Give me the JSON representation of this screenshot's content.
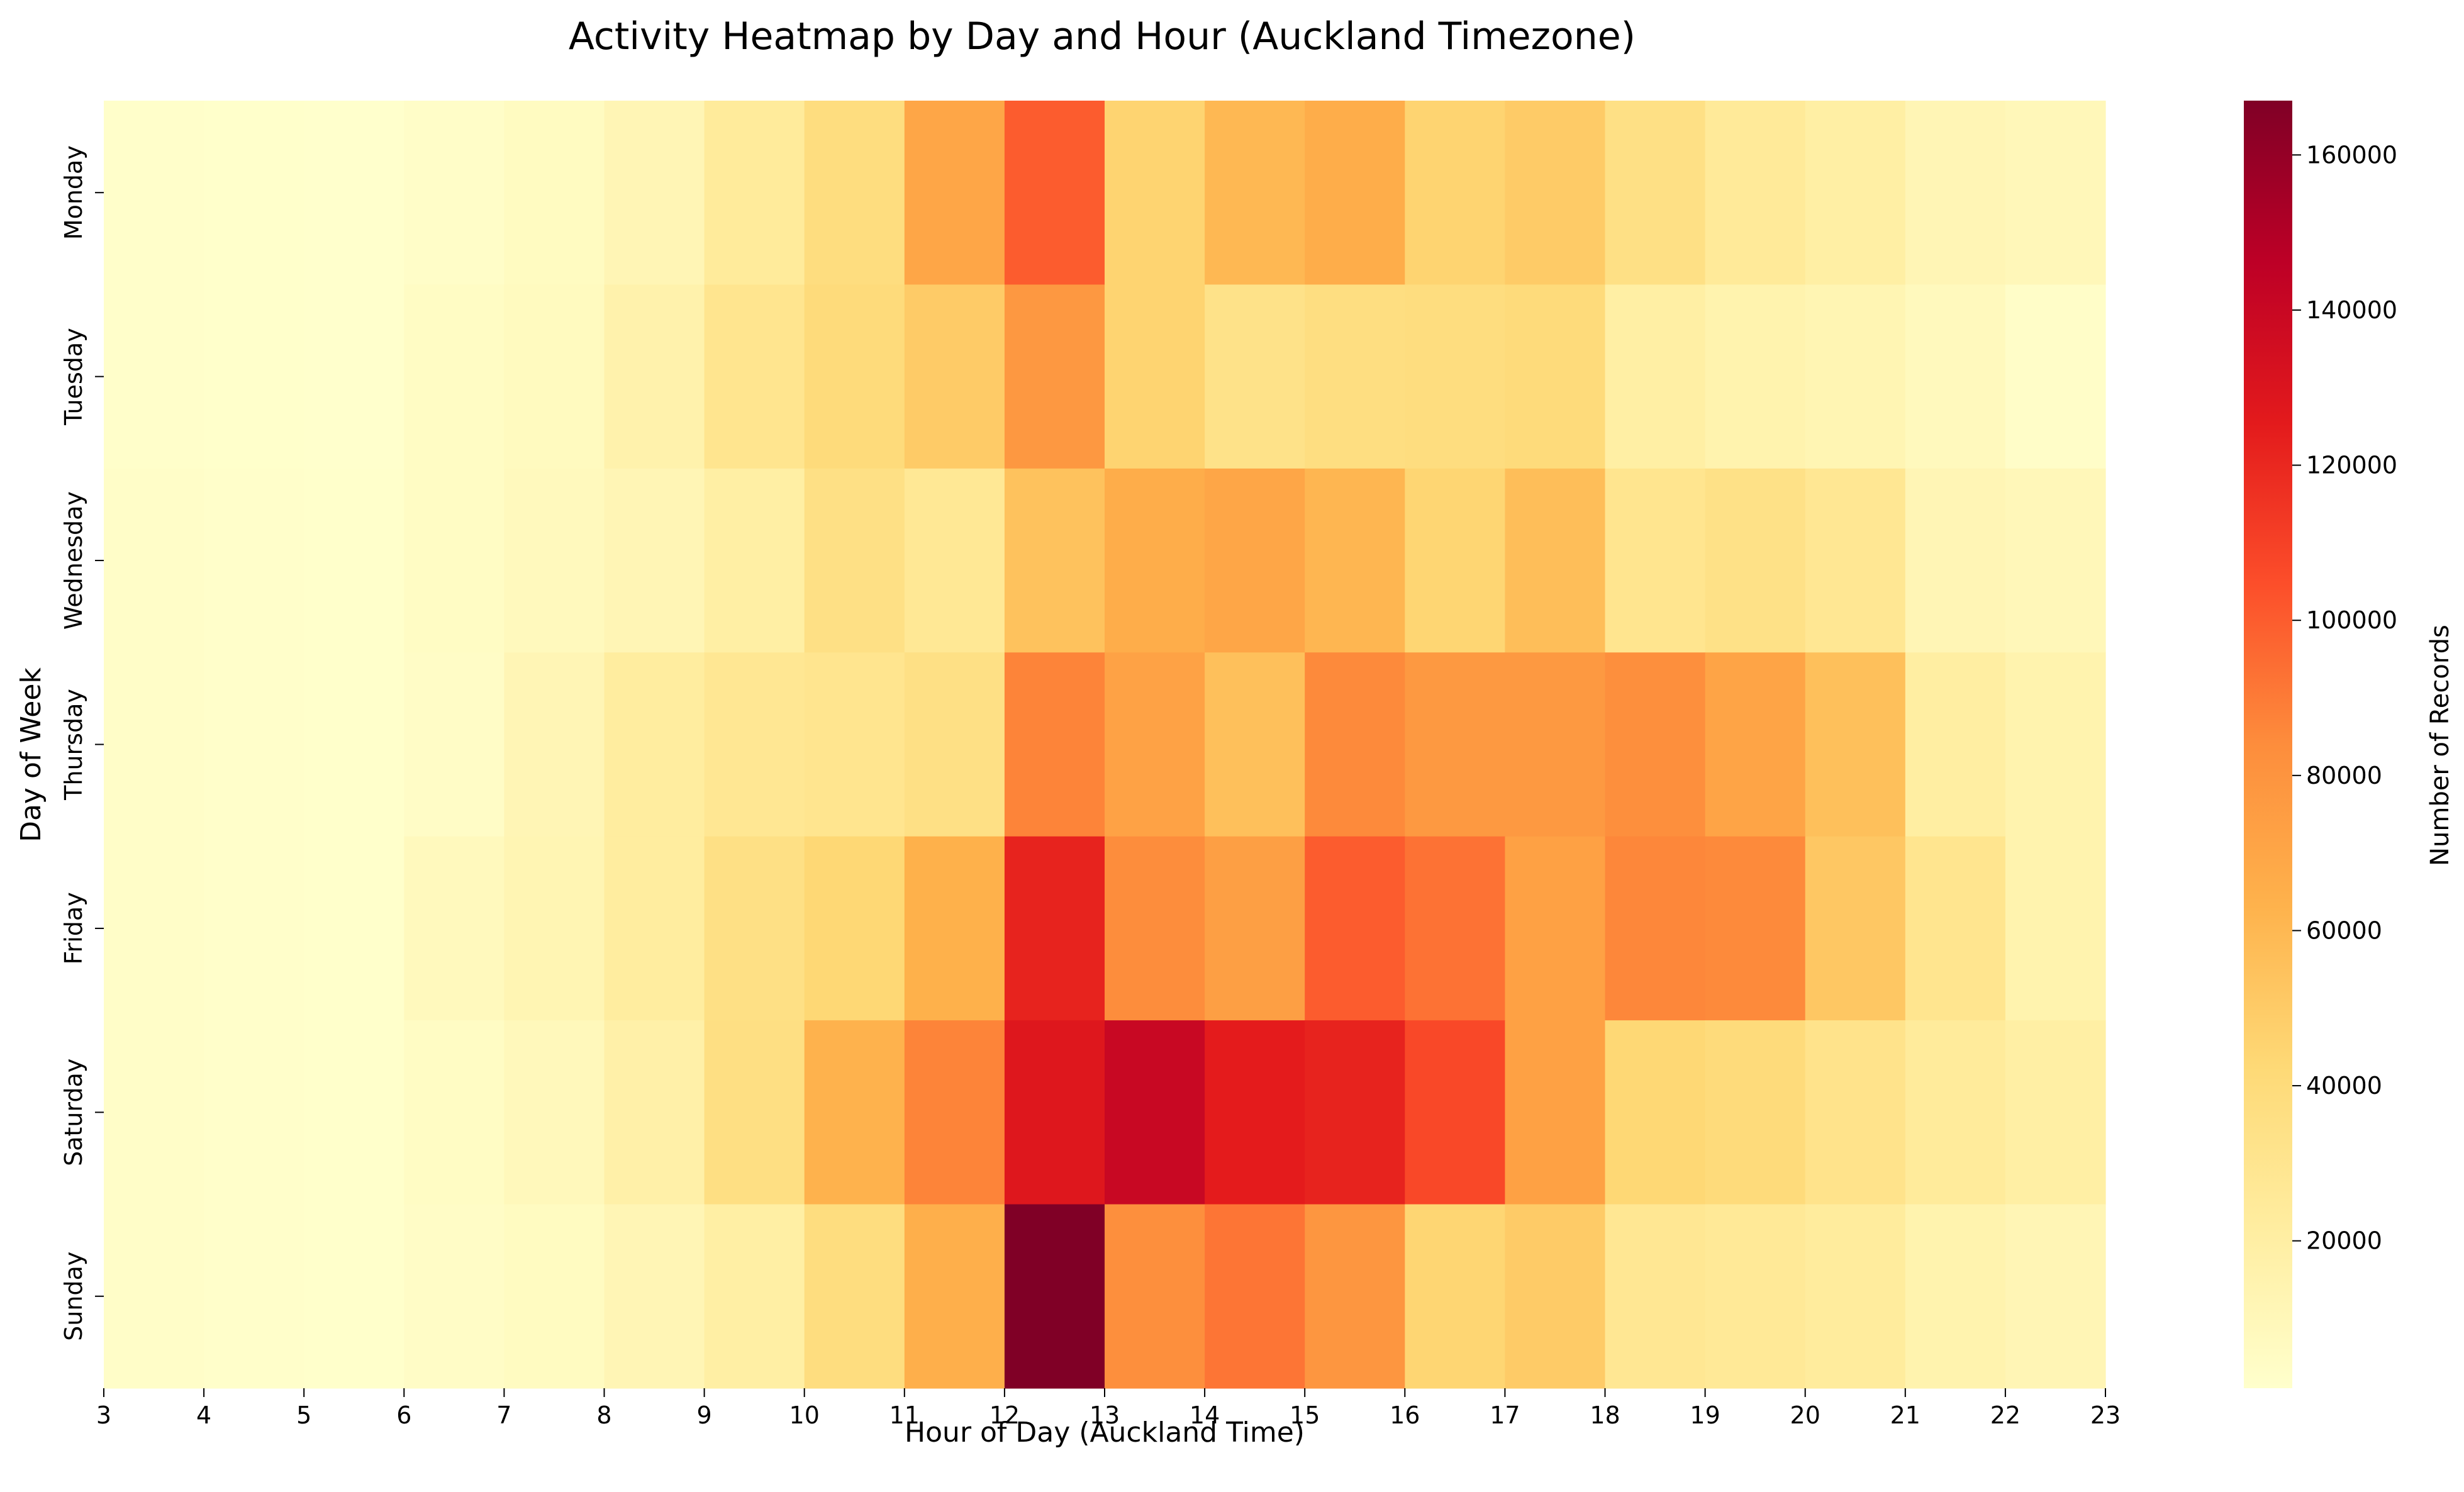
{
  "chart_data": {
    "type": "heatmap",
    "title": "Activity Heatmap by Day and Hour (Auckland Timezone)",
    "xlabel": "Hour of Day (Auckland Time)",
    "ylabel": "Day of Week",
    "x_ticks": [
      "3",
      "4",
      "5",
      "6",
      "7",
      "8",
      "9",
      "10",
      "11",
      "12",
      "13",
      "14",
      "15",
      "16",
      "17",
      "18",
      "19",
      "20",
      "21",
      "22",
      "23"
    ],
    "x": [
      3,
      4,
      5,
      6,
      7,
      8,
      9,
      10,
      11,
      12,
      13,
      14,
      15,
      16,
      17,
      18,
      19,
      20,
      21,
      22
    ],
    "y": [
      "Monday",
      "Tuesday",
      "Wednesday",
      "Thursday",
      "Friday",
      "Saturday",
      "Sunday"
    ],
    "values": [
      [
        2000,
        1500,
        1000,
        3000,
        6000,
        12000,
        24000,
        38000,
        70000,
        100000,
        45000,
        60000,
        66000,
        45000,
        50000,
        35000,
        25000,
        20000,
        12000,
        10000
      ],
      [
        2000,
        1500,
        1000,
        5000,
        7000,
        16000,
        30000,
        40000,
        50000,
        78000,
        45000,
        33000,
        37000,
        38000,
        40000,
        20000,
        15000,
        13000,
        8000,
        3000
      ],
      [
        3000,
        2000,
        1500,
        5000,
        8000,
        12000,
        20000,
        35000,
        27000,
        55000,
        66000,
        70000,
        61000,
        44000,
        57000,
        30000,
        34000,
        28000,
        12000,
        10000
      ],
      [
        3000,
        2000,
        1500,
        4000,
        12000,
        22000,
        28000,
        30000,
        35000,
        87000,
        72000,
        56000,
        85000,
        77000,
        77000,
        83000,
        71000,
        56000,
        21000,
        15000
      ],
      [
        3000,
        2000,
        1500,
        8000,
        13000,
        22000,
        35000,
        43000,
        64000,
        122000,
        84000,
        74000,
        100000,
        93000,
        73000,
        86000,
        85000,
        52000,
        30000,
        15000
      ],
      [
        3000,
        2000,
        1500,
        5000,
        9000,
        18000,
        36000,
        63000,
        87000,
        128000,
        140000,
        125000,
        122000,
        107000,
        73000,
        43000,
        40000,
        32000,
        24000,
        20000
      ],
      [
        3000,
        2000,
        1500,
        4000,
        6000,
        12000,
        20000,
        38000,
        65000,
        167000,
        83000,
        92000,
        79000,
        44000,
        50000,
        28000,
        26000,
        23000,
        15000,
        12000
      ]
    ],
    "colormap": "YlOrRd",
    "vmin": 1000,
    "vmax": 167000,
    "colorbar": {
      "label": "Number of Records",
      "ticks": [
        20000,
        40000,
        60000,
        80000,
        100000,
        120000,
        140000,
        160000
      ],
      "tick_labels": [
        "20000",
        "40000",
        "60000",
        "80000",
        "100000",
        "120000",
        "140000",
        "160000"
      ]
    },
    "grid": false,
    "legend": "colorbar-right"
  }
}
